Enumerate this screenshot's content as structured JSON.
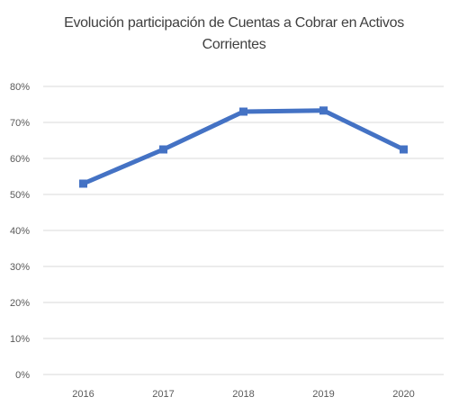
{
  "chart_data": {
    "type": "line",
    "title": "Evolución participación de Cuentas a Cobrar en Activos Corrientes",
    "xlabel": "",
    "ylabel": "",
    "categories": [
      "2016",
      "2017",
      "2018",
      "2019",
      "2020"
    ],
    "series": [
      {
        "values": [
          0.53,
          0.625,
          0.73,
          0.733,
          0.625
        ]
      }
    ],
    "ylim": [
      0,
      0.8
    ],
    "yticks": [
      0,
      0.1,
      0.2,
      0.3,
      0.4,
      0.5,
      0.6,
      0.7,
      0.8
    ],
    "ytick_labels": [
      "0%",
      "10%",
      "20%",
      "30%",
      "40%",
      "50%",
      "60%",
      "70%",
      "80%"
    ],
    "grid": true,
    "legend": "none",
    "colors": {
      "line": "#4472C4",
      "grid": "#D9D9D9",
      "text": "#595959",
      "title": "#404040"
    },
    "marker": "square"
  }
}
